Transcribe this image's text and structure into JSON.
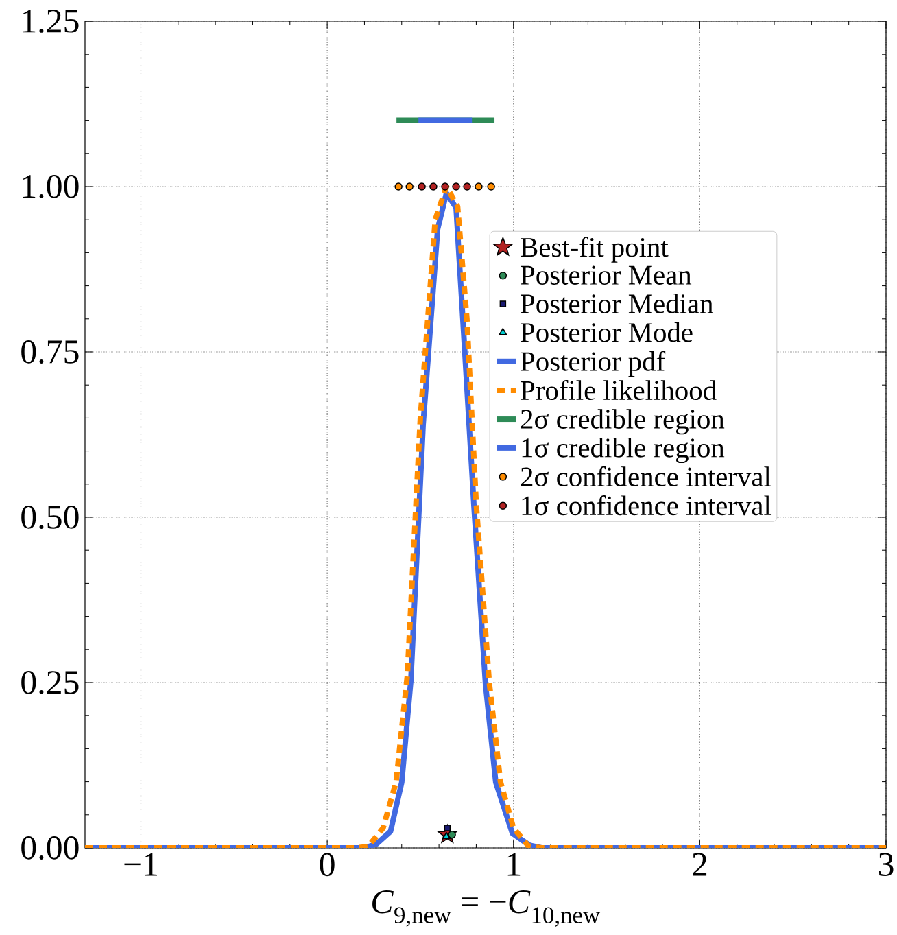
{
  "chart_data": {
    "type": "line",
    "xlabel": "*C*$_{9,new}$ = −*C*$_{10,new}$",
    "xlim": [
      -1.3,
      3
    ],
    "ylim": [
      0,
      1.25
    ],
    "xticks": [
      {
        "value": -1,
        "label": "−1"
      },
      0,
      1,
      2,
      3
    ],
    "yticks": [
      {
        "value": 0,
        "label": "0.00"
      },
      {
        "value": 0.25,
        "label": "0.25"
      },
      {
        "value": 0.5,
        "label": "0.50"
      },
      {
        "value": 0.75,
        "label": "0.75"
      },
      {
        "value": 1,
        "label": "1.00"
      },
      {
        "value": 1.25,
        "label": "1.25"
      }
    ],
    "grid": true,
    "legend": "right",
    "series": [
      {
        "name": "Best-fit point",
        "type": "scatter",
        "marker": "star",
        "color": "#b22222",
        "x": [
          0.645
        ],
        "values": [
          0.02
        ]
      },
      {
        "name": "Posterior Mean",
        "type": "scatter",
        "marker": "circle",
        "color": "#2e8b57",
        "x": [
          0.67
        ],
        "values": [
          0.02
        ]
      },
      {
        "name": "Posterior Median",
        "type": "scatter",
        "marker": "square",
        "color": "#191970",
        "x": [
          0.645
        ],
        "values": [
          0.03
        ]
      },
      {
        "name": "Posterior Mode",
        "type": "scatter",
        "marker": "triangle",
        "color": "#00ced1",
        "x": [
          0.64
        ],
        "values": [
          0.017
        ]
      },
      {
        "name": "Posterior pdf",
        "type": "line",
        "line_style": "solid",
        "color": "#4169e1",
        "x": [
          -1.3,
          0.2,
          0.265,
          0.34,
          0.4,
          0.449,
          0.515,
          0.593,
          0.64,
          0.692,
          0.729,
          0.788,
          0.85,
          0.905,
          0.994,
          1.086,
          1.15,
          3
        ],
        "values": [
          0,
          0,
          0.006,
          0.025,
          0.099,
          0.253,
          0.64,
          0.936,
          0.99,
          0.968,
          0.796,
          0.516,
          0.247,
          0.099,
          0.022,
          0.004,
          0,
          0
        ]
      },
      {
        "name": "Profile likelihood",
        "type": "line",
        "line_style": "dashed",
        "color": "#ff8c00",
        "x": [
          -1.3,
          0.15,
          0.22,
          0.3,
          0.37,
          0.43,
          0.5,
          0.58,
          0.64,
          0.7,
          0.75,
          0.8,
          0.87,
          0.93,
          1.0,
          1.08,
          1.15,
          3
        ],
        "values": [
          0,
          0,
          0.002,
          0.03,
          0.1,
          0.26,
          0.65,
          0.95,
          1.0,
          0.97,
          0.8,
          0.52,
          0.25,
          0.1,
          0.03,
          0.003,
          0,
          0
        ]
      },
      {
        "name": "2σ credible region",
        "type": "line",
        "line_style": "solid",
        "color": "#2e8b57",
        "x": [
          0.372,
          0.898
        ],
        "values": [
          1.1,
          1.1
        ]
      },
      {
        "name": "1σ credible region",
        "type": "line",
        "line_style": "solid",
        "color": "#4169e1",
        "x": [
          0.49,
          0.777
        ],
        "values": [
          1.1,
          1.1
        ]
      },
      {
        "name": "2σ confidence interval",
        "type": "scatter",
        "marker": "circle",
        "color": "#ff8c00",
        "x": [
          0.383,
          0.442,
          0.813,
          0.88
        ],
        "values": [
          1,
          1,
          1,
          1
        ]
      },
      {
        "name": "1σ confidence interval",
        "type": "scatter",
        "marker": "circle",
        "color": "#b22222",
        "x": [
          0.508,
          0.57,
          0.633,
          0.692,
          0.751
        ],
        "values": [
          1,
          1,
          1,
          1,
          1
        ]
      }
    ]
  }
}
